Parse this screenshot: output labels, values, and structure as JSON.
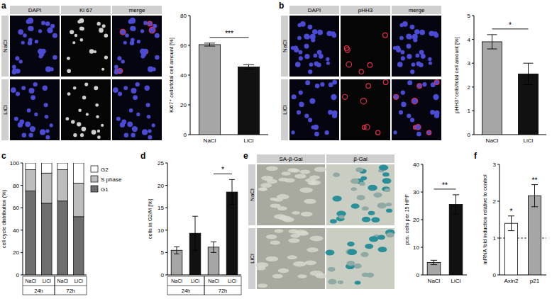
{
  "panel_labels": [
    "a",
    "b",
    "c",
    "d",
    "e",
    "f"
  ],
  "images": [
    {
      "columns": [
        "DAPI",
        "Ki 67",
        "merge"
      ],
      "rows": [
        "NaCl",
        "LiCl"
      ]
    },
    {
      "columns": [
        "DAPI",
        "pHH3",
        "merge"
      ],
      "rows": [
        "NaCl",
        "LiCl"
      ]
    },
    {
      "columns": [
        "SA-β-Gal",
        "β-Gal"
      ],
      "rows": [
        "NaCl",
        "LiCl"
      ]
    }
  ],
  "chart_data": [
    {
      "type": "bar",
      "y_label": "Ki67⁺ cells/total cell amount [%]",
      "categories": [
        "NaCl",
        "LiCl"
      ],
      "values": [
        60.5,
        45.5
      ],
      "errors": [
        1,
        1.5
      ],
      "colors": [
        "#a6a6a6",
        "#111111"
      ],
      "ylim": [
        0,
        80
      ],
      "yticks": [
        0,
        20,
        40,
        60,
        80
      ],
      "annotations": [
        {
          "text": "***",
          "categories": [
            0,
            1
          ]
        }
      ]
    },
    {
      "type": "bar",
      "y_label": "pHH3⁺cells/total cell amount [%]",
      "categories": [
        "NaCl",
        "LiCl"
      ],
      "values": [
        3.9,
        2.55
      ],
      "errors": [
        0.3,
        0.45
      ],
      "colors": [
        "#a6a6a6",
        "#111111"
      ],
      "ylim": [
        0,
        5
      ],
      "yticks": [
        0,
        1,
        2,
        3,
        4,
        5
      ],
      "annotations": [
        {
          "text": "*",
          "categories": [
            0,
            1
          ]
        }
      ]
    },
    {
      "type": "bar",
      "stacked": true,
      "y_label": "cell cycle distribution (%)",
      "categories": [
        "NaCl",
        "LiCl",
        "NaCl",
        "LiCl"
      ],
      "groups": [
        {
          "label": "24h",
          "categories": [
            0,
            1
          ]
        },
        {
          "label": "72h",
          "categories": [
            2,
            3
          ]
        }
      ],
      "series": [
        {
          "name": "G1",
          "color": "#6e6e6e",
          "values": [
            75,
            64,
            66,
            52
          ]
        },
        {
          "name": "S phase",
          "color": "#bdbdbd",
          "values": [
            19,
            27,
            28,
            30
          ]
        },
        {
          "name": "G2",
          "color": "#ffffff",
          "values": [
            6,
            9,
            6,
            18
          ]
        }
      ],
      "ylim": [
        0,
        100
      ],
      "yticks": [
        0,
        20,
        40,
        60,
        80,
        100
      ],
      "legend": "right"
    },
    {
      "type": "bar",
      "y_label": "cells in G2/M [%]",
      "categories": [
        "NaCl",
        "LiCl",
        "NaCl",
        "LiCl"
      ],
      "groups": [
        {
          "label": "24h",
          "categories": [
            0,
            1
          ]
        },
        {
          "label": "72h",
          "categories": [
            2,
            3
          ]
        }
      ],
      "values": [
        5.5,
        9.3,
        6.2,
        18.5
      ],
      "errors": [
        0.8,
        3.8,
        1.2,
        2.8
      ],
      "colors": [
        "#a6a6a6",
        "#111111",
        "#a6a6a6",
        "#111111"
      ],
      "ylim": [
        0,
        25
      ],
      "yticks": [
        0,
        5,
        10,
        15,
        20,
        25
      ],
      "annotations": [
        {
          "text": "*",
          "categories": [
            2,
            3
          ]
        }
      ]
    },
    {
      "type": "bar",
      "y_label": "pos. cells per 15 HPF",
      "categories": [
        "NaCl",
        "LiCl"
      ],
      "values": [
        4.5,
        25.5
      ],
      "errors": [
        0.8,
        3.5
      ],
      "colors": [
        "#a6a6a6",
        "#111111"
      ],
      "ylim": [
        0,
        40
      ],
      "yticks": [
        0,
        10,
        20,
        30,
        40
      ],
      "annotations": [
        {
          "text": "**",
          "categories": [
            0,
            1
          ]
        }
      ]
    },
    {
      "type": "bar",
      "y_label": "mRNA fold induction relative to control",
      "categories": [
        "Axin2",
        "p21"
      ],
      "values": [
        1.4,
        2.15
      ],
      "errors": [
        0.2,
        0.3
      ],
      "colors": [
        "#ffffff",
        "#a6a6a6"
      ],
      "ylim": [
        0,
        3
      ],
      "yticks": [
        0,
        1,
        2,
        3
      ],
      "reference": 1,
      "annotations": [
        {
          "text": "*",
          "categories": [
            0
          ]
        },
        {
          "text": "**",
          "categories": [
            1
          ]
        }
      ]
    }
  ]
}
